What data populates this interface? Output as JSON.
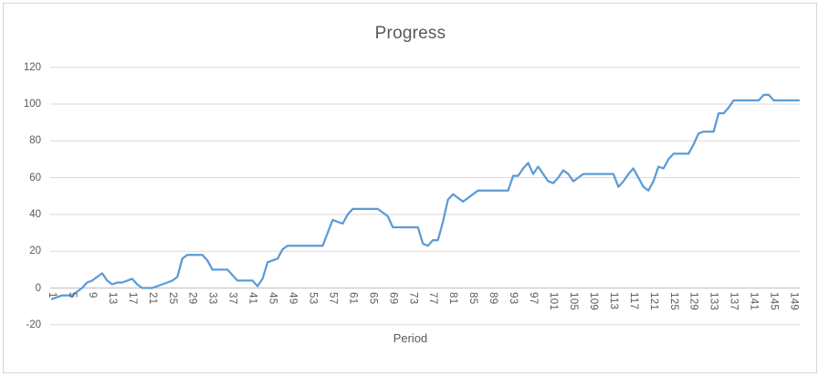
{
  "window": {
    "background": "#ffffff",
    "border_color": "#d7d7d7"
  },
  "chart_data": {
    "type": "line",
    "title": "Progress",
    "xlabel": "Period",
    "ylabel": "",
    "legend": "none",
    "grid": "horizontal-only",
    "text_color": "#595959",
    "gridline_color": "#d9d9d9",
    "axis_line_color": "#bfbfbf",
    "ylim": [
      -20,
      120
    ],
    "y_ticks": [
      120,
      100,
      80,
      60,
      40,
      20,
      0,
      -20
    ],
    "x_tick_labels": [
      1,
      5,
      9,
      13,
      17,
      21,
      25,
      29,
      33,
      37,
      41,
      45,
      49,
      53,
      57,
      61,
      65,
      69,
      73,
      77,
      81,
      85,
      89,
      93,
      97,
      101,
      105,
      109,
      113,
      117,
      121,
      125,
      129,
      133,
      137,
      141,
      145,
      149
    ],
    "x_first_period": 1,
    "x_last_period": 150,
    "series": [
      {
        "name": "Progress",
        "color": "#5b9bd5",
        "values": [
          -6,
          -5,
          -4,
          -4,
          -4,
          -2,
          0,
          3,
          4,
          6,
          8,
          4,
          2,
          3,
          3,
          4,
          5,
          2,
          0,
          0,
          0,
          1,
          2,
          3,
          4,
          6,
          16,
          18,
          18,
          18,
          18,
          15,
          10,
          10,
          10,
          10,
          7,
          4,
          4,
          4,
          4,
          1,
          5,
          14,
          15,
          16,
          21,
          23,
          23,
          23,
          23,
          23,
          23,
          23,
          23,
          30,
          37,
          36,
          35,
          40,
          43,
          43,
          43,
          43,
          43,
          43,
          41,
          39,
          33,
          33,
          33,
          33,
          33,
          33,
          24,
          23,
          26,
          26,
          36,
          48,
          51,
          49,
          47,
          49,
          51,
          53,
          53,
          53,
          53,
          53,
          53,
          53,
          61,
          61,
          65,
          68,
          62,
          66,
          62,
          58,
          57,
          60,
          64,
          62,
          58,
          60,
          62,
          62,
          62,
          62,
          62,
          62,
          62,
          55,
          58,
          62,
          65,
          60,
          55,
          53,
          58,
          66,
          65,
          70,
          73,
          73,
          73,
          73,
          78,
          84,
          85,
          85,
          85,
          95,
          95,
          98,
          102,
          102,
          102,
          102,
          102,
          102,
          105,
          105,
          102,
          102,
          102,
          102,
          102,
          102
        ]
      }
    ]
  }
}
